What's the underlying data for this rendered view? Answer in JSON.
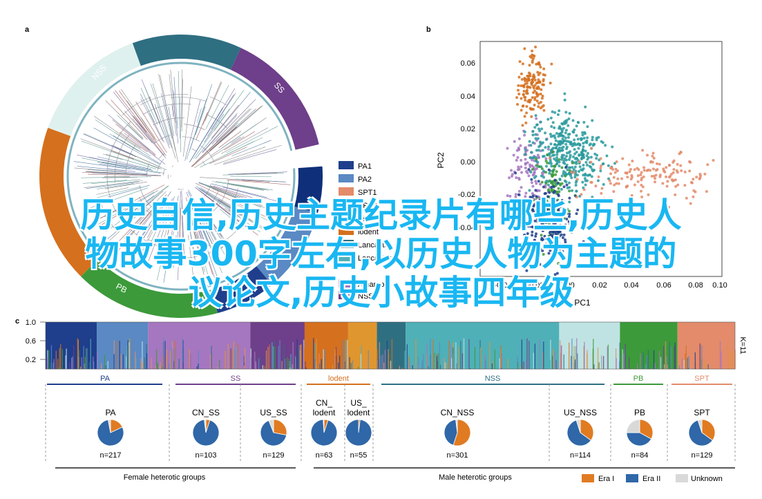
{
  "overlay": {
    "line1": "历史自信,历史主题纪录片有哪些,历史人",
    "line2": "物故事300字左右,以历史人物为主题的",
    "line3": "议论文,历史小故事四年级"
  },
  "panel_labels": {
    "a": "a",
    "b": "b",
    "c": "c"
  },
  "colors": {
    "PA": "#1f3e8c",
    "SS": "#6e3f8a",
    "lodent": "#d5701e",
    "NSS": "#2f6f82",
    "PB": "#3c9a3a",
    "SPT": "#e38b6a",
    "EraI": "#e07b22",
    "EraII": "#2f67a8",
    "Unknown": "#d9d9d9"
  },
  "chart_data": [
    {
      "type": "other",
      "panel": "a",
      "description_free": true,
      "ring_labels": [
        "NSS",
        "SS",
        "PB"
      ],
      "legend": [
        {
          "label": "PA1",
          "color": "#1f3e8c"
        },
        {
          "label": "PA2",
          "color": "#5a89c4"
        },
        {
          "label": "SPT1",
          "color": "#e38b6a"
        },
        {
          "label": "SPT2",
          "color": "#f2b9a0"
        },
        {
          "label": "PB",
          "color": "#3c9a3a"
        },
        {
          "label": "lodent",
          "color": "#d5701e"
        },
        {
          "label": "Lancaster",
          "color": "#2f6f82"
        },
        {
          "label": "Lancaster",
          "color": "#4fb0b8"
        },
        {
          "label": "Amargo",
          "color": "#a577c0"
        },
        {
          "label": "NSSS",
          "color": "#6e3f8a"
        }
      ]
    },
    {
      "type": "scatter",
      "panel": "b",
      "xlabel": "PC1",
      "ylabel": "PC2",
      "xlim": [
        -0.04,
        0.1
      ],
      "ylim": [
        -0.05,
        0.07
      ],
      "xticks": [
        "-0.04",
        "-0.02",
        "0.00",
        "0.02",
        "0.04",
        "0.06",
        "0.08",
        "0.10"
      ],
      "yticks": [
        "-0.04",
        "-0.02",
        "0.00",
        "0.02",
        "0.04",
        "0.06"
      ],
      "clusters": [
        {
          "color": "#d5701e",
          "cx": -0.01,
          "cy": 0.047,
          "sx": 0.004,
          "sy": 0.008,
          "n": 140
        },
        {
          "color": "#a577c0",
          "cx": -0.012,
          "cy": 0.005,
          "sx": 0.005,
          "sy": 0.012,
          "n": 120
        },
        {
          "color": "#2a9a9e",
          "cx": 0.01,
          "cy": 0.013,
          "sx": 0.01,
          "sy": 0.01,
          "n": 380
        },
        {
          "color": "#3c9a3a",
          "cx": 0.002,
          "cy": -0.01,
          "sx": 0.005,
          "sy": 0.012,
          "n": 120
        },
        {
          "color": "#1f3e8c",
          "cx": -0.002,
          "cy": -0.022,
          "sx": 0.008,
          "sy": 0.01,
          "n": 220
        },
        {
          "color": "#e38b6a",
          "cx": 0.055,
          "cy": 0.002,
          "sx": 0.02,
          "sy": 0.006,
          "n": 150
        }
      ]
    },
    {
      "type": "bar",
      "panel": "c",
      "k_label": "K=11",
      "yticks": [
        "1.0",
        "0.6",
        "0.2"
      ],
      "groups": [
        {
          "label": "PA",
          "color": "#1f3e8c"
        },
        {
          "label": "SS",
          "color": "#6e3f8a"
        },
        {
          "label": "lodent",
          "color": "#d5701e"
        },
        {
          "label": "NSS",
          "color": "#2f6f82"
        },
        {
          "label": "PB",
          "color": "#3c9a3a"
        },
        {
          "label": "SPT",
          "color": "#e38b6a"
        }
      ],
      "segment_weights": [
        0.08,
        0.08,
        0.16,
        0.085,
        0.068,
        0.045,
        0.045,
        0.24,
        0.095,
        0.09,
        0.09
      ],
      "pies": [
        {
          "label": "PA",
          "n": "n=217",
          "eraI": 0.18,
          "eraII": 0.79,
          "unknown": 0.03
        },
        {
          "label": "CN_SS",
          "n": "n=103",
          "eraI": 0.05,
          "eraII": 0.93,
          "unknown": 0.02
        },
        {
          "label": "US_SS",
          "n": "n=129",
          "eraI": 0.28,
          "eraII": 0.66,
          "unknown": 0.06
        },
        {
          "label": "CN_\nlodent",
          "n": "n=63",
          "eraI": 0.05,
          "eraII": 0.94,
          "unknown": 0.01
        },
        {
          "label": "US_\nlodent",
          "n": "n=55",
          "eraI": 0.02,
          "eraII": 0.98,
          "unknown": 0.0
        },
        {
          "label": "CN_NSS",
          "n": "n=301",
          "eraI": 0.55,
          "eraII": 0.43,
          "unknown": 0.02
        },
        {
          "label": "US_NSS",
          "n": "n=114",
          "eraI": 0.35,
          "eraII": 0.6,
          "unknown": 0.05
        },
        {
          "label": "PB",
          "n": "n=84",
          "eraI": 0.33,
          "eraII": 0.42,
          "unknown": 0.25
        },
        {
          "label": "SPT",
          "n": "n=129",
          "eraI": 0.35,
          "eraII": 0.6,
          "unknown": 0.05
        }
      ],
      "bottom_labels": [
        "Female heterotic groups",
        "Male heterotic groups"
      ],
      "legend": [
        {
          "label": "Era I",
          "color": "#e07b22"
        },
        {
          "label": "Era II",
          "color": "#2f67a8"
        },
        {
          "label": "Unknown",
          "color": "#d9d9d9"
        }
      ]
    }
  ]
}
